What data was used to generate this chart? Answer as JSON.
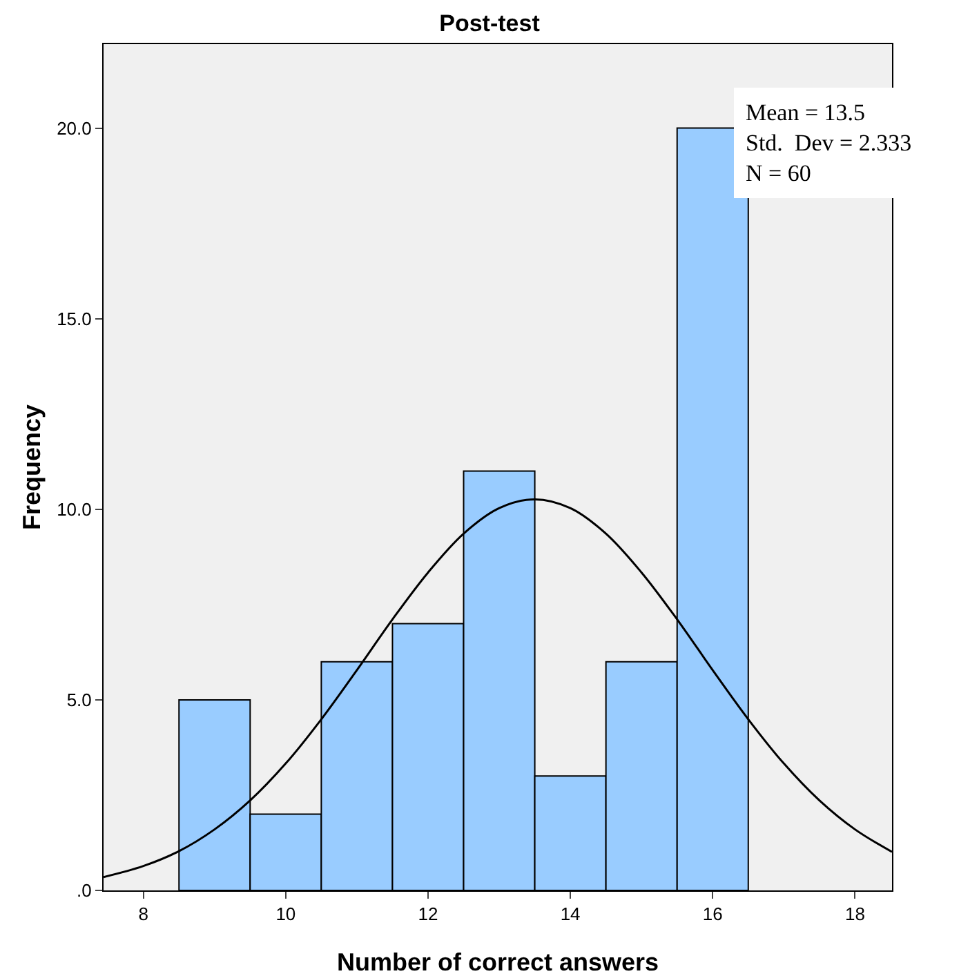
{
  "chart_data": {
    "type": "histogram",
    "title": "Post-test",
    "xlabel": "Number of correct answers",
    "ylabel": "Frequency",
    "bins": [
      8.5,
      9.5,
      10.5,
      11.5,
      12.5,
      13.5,
      14.5,
      15.5,
      16.5
    ],
    "values": [
      5,
      2,
      6,
      7,
      11,
      3,
      6,
      20
    ],
    "color": "#99ccff",
    "series": [
      {
        "type": "line",
        "color": "#000000",
        "x": [
          7.44,
          8,
          8.5,
          9,
          9.5,
          10,
          10.5,
          11,
          11.5,
          12,
          12.5,
          13,
          13.5,
          14,
          14.5,
          15,
          15.5,
          16,
          16.5,
          17,
          17.5,
          18,
          18.52
        ],
        "values": [
          0.35,
          0.64,
          1.03,
          1.6,
          2.36,
          3.33,
          4.49,
          5.78,
          7.11,
          8.34,
          9.36,
          10.03,
          10.26,
          10.03,
          9.36,
          8.34,
          7.11,
          5.78,
          4.49,
          3.33,
          2.36,
          1.6,
          1.01
        ]
      }
    ],
    "xlim": [
      7.44,
      18.52
    ],
    "xticks": [
      8,
      10,
      12,
      14,
      16,
      18
    ],
    "ylim": [
      0,
      22.2
    ],
    "yticks": [
      {
        "value": 0,
        "label": ".0"
      },
      {
        "value": 5,
        "label": "5.0"
      },
      {
        "value": 10,
        "label": "10.0"
      },
      {
        "value": 15,
        "label": "15.0"
      },
      {
        "value": 20,
        "label": "20.0"
      }
    ],
    "annotations": [
      "Mean = 13.5",
      "Std.  Dev = 2.333",
      "N = 60"
    ],
    "grid": false,
    "marker": "none",
    "line_style": "solid"
  }
}
